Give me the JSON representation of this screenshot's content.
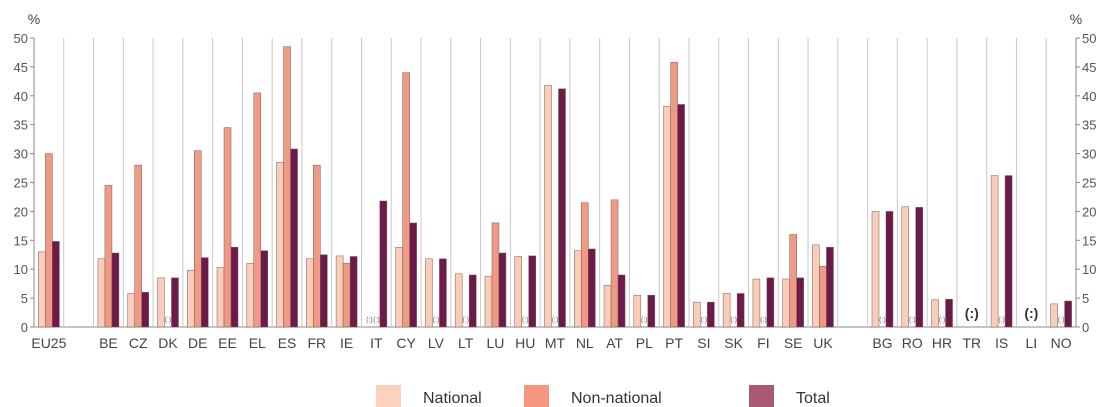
{
  "chart_data": {
    "type": "bar",
    "y_unit": "%",
    "ylim": [
      0,
      50
    ],
    "y_ticks": [
      0,
      5,
      10,
      15,
      20,
      25,
      30,
      35,
      40,
      45,
      50
    ],
    "grid": "vertical separators between categories",
    "legend_position": "bottom",
    "na_label": "(:)",
    "categories": [
      "EU25",
      "BE",
      "CZ",
      "DK",
      "DE",
      "EE",
      "EL",
      "ES",
      "FR",
      "IE",
      "IT",
      "CY",
      "LV",
      "LT",
      "LU",
      "HU",
      "MT",
      "NL",
      "AT",
      "PL",
      "PT",
      "SI",
      "SK",
      "FI",
      "SE",
      "UK",
      "BG",
      "RO",
      "HR",
      "TR",
      "IS",
      "LI",
      "NO"
    ],
    "gap_after": [
      "EU25",
      "UK"
    ],
    "colors": {
      "National": "#f9cdb8",
      "Non-national": "#ef9a84",
      "Total": "#6b1a4a"
    },
    "legend_colors": {
      "National": "#fdd2bd",
      "Non-national": "#f79680",
      "Total": "#a85a72"
    },
    "series": [
      {
        "name": "National",
        "values": [
          13,
          11.8,
          5.8,
          8.5,
          9.8,
          10.3,
          11,
          28.5,
          11.8,
          12.3,
          null,
          13.8,
          11.8,
          9.2,
          8.8,
          12.2,
          41.8,
          13.2,
          7.2,
          5.5,
          38.2,
          4.3,
          5.8,
          8.3,
          8.3,
          14.2,
          20,
          20.8,
          4.7,
          null,
          26.2,
          null,
          4
        ]
      },
      {
        "name": "Non-national",
        "values": [
          30,
          24.5,
          28,
          null,
          30.5,
          34.5,
          40.5,
          48.5,
          28,
          11,
          null,
          44,
          null,
          null,
          18,
          null,
          null,
          21.5,
          22,
          null,
          45.8,
          null,
          null,
          null,
          16,
          10.5,
          null,
          null,
          null,
          null,
          null,
          null,
          null
        ]
      },
      {
        "name": "Total",
        "values": [
          14.8,
          12.8,
          6,
          8.5,
          12,
          13.8,
          13.2,
          30.8,
          12.5,
          12.2,
          21.8,
          18,
          11.8,
          9,
          12.8,
          12.3,
          41.2,
          13.5,
          9,
          5.5,
          38.5,
          4.3,
          5.8,
          8.5,
          8.5,
          13.8,
          20,
          20.7,
          4.8,
          null,
          26.2,
          null,
          4.5
        ]
      }
    ]
  }
}
